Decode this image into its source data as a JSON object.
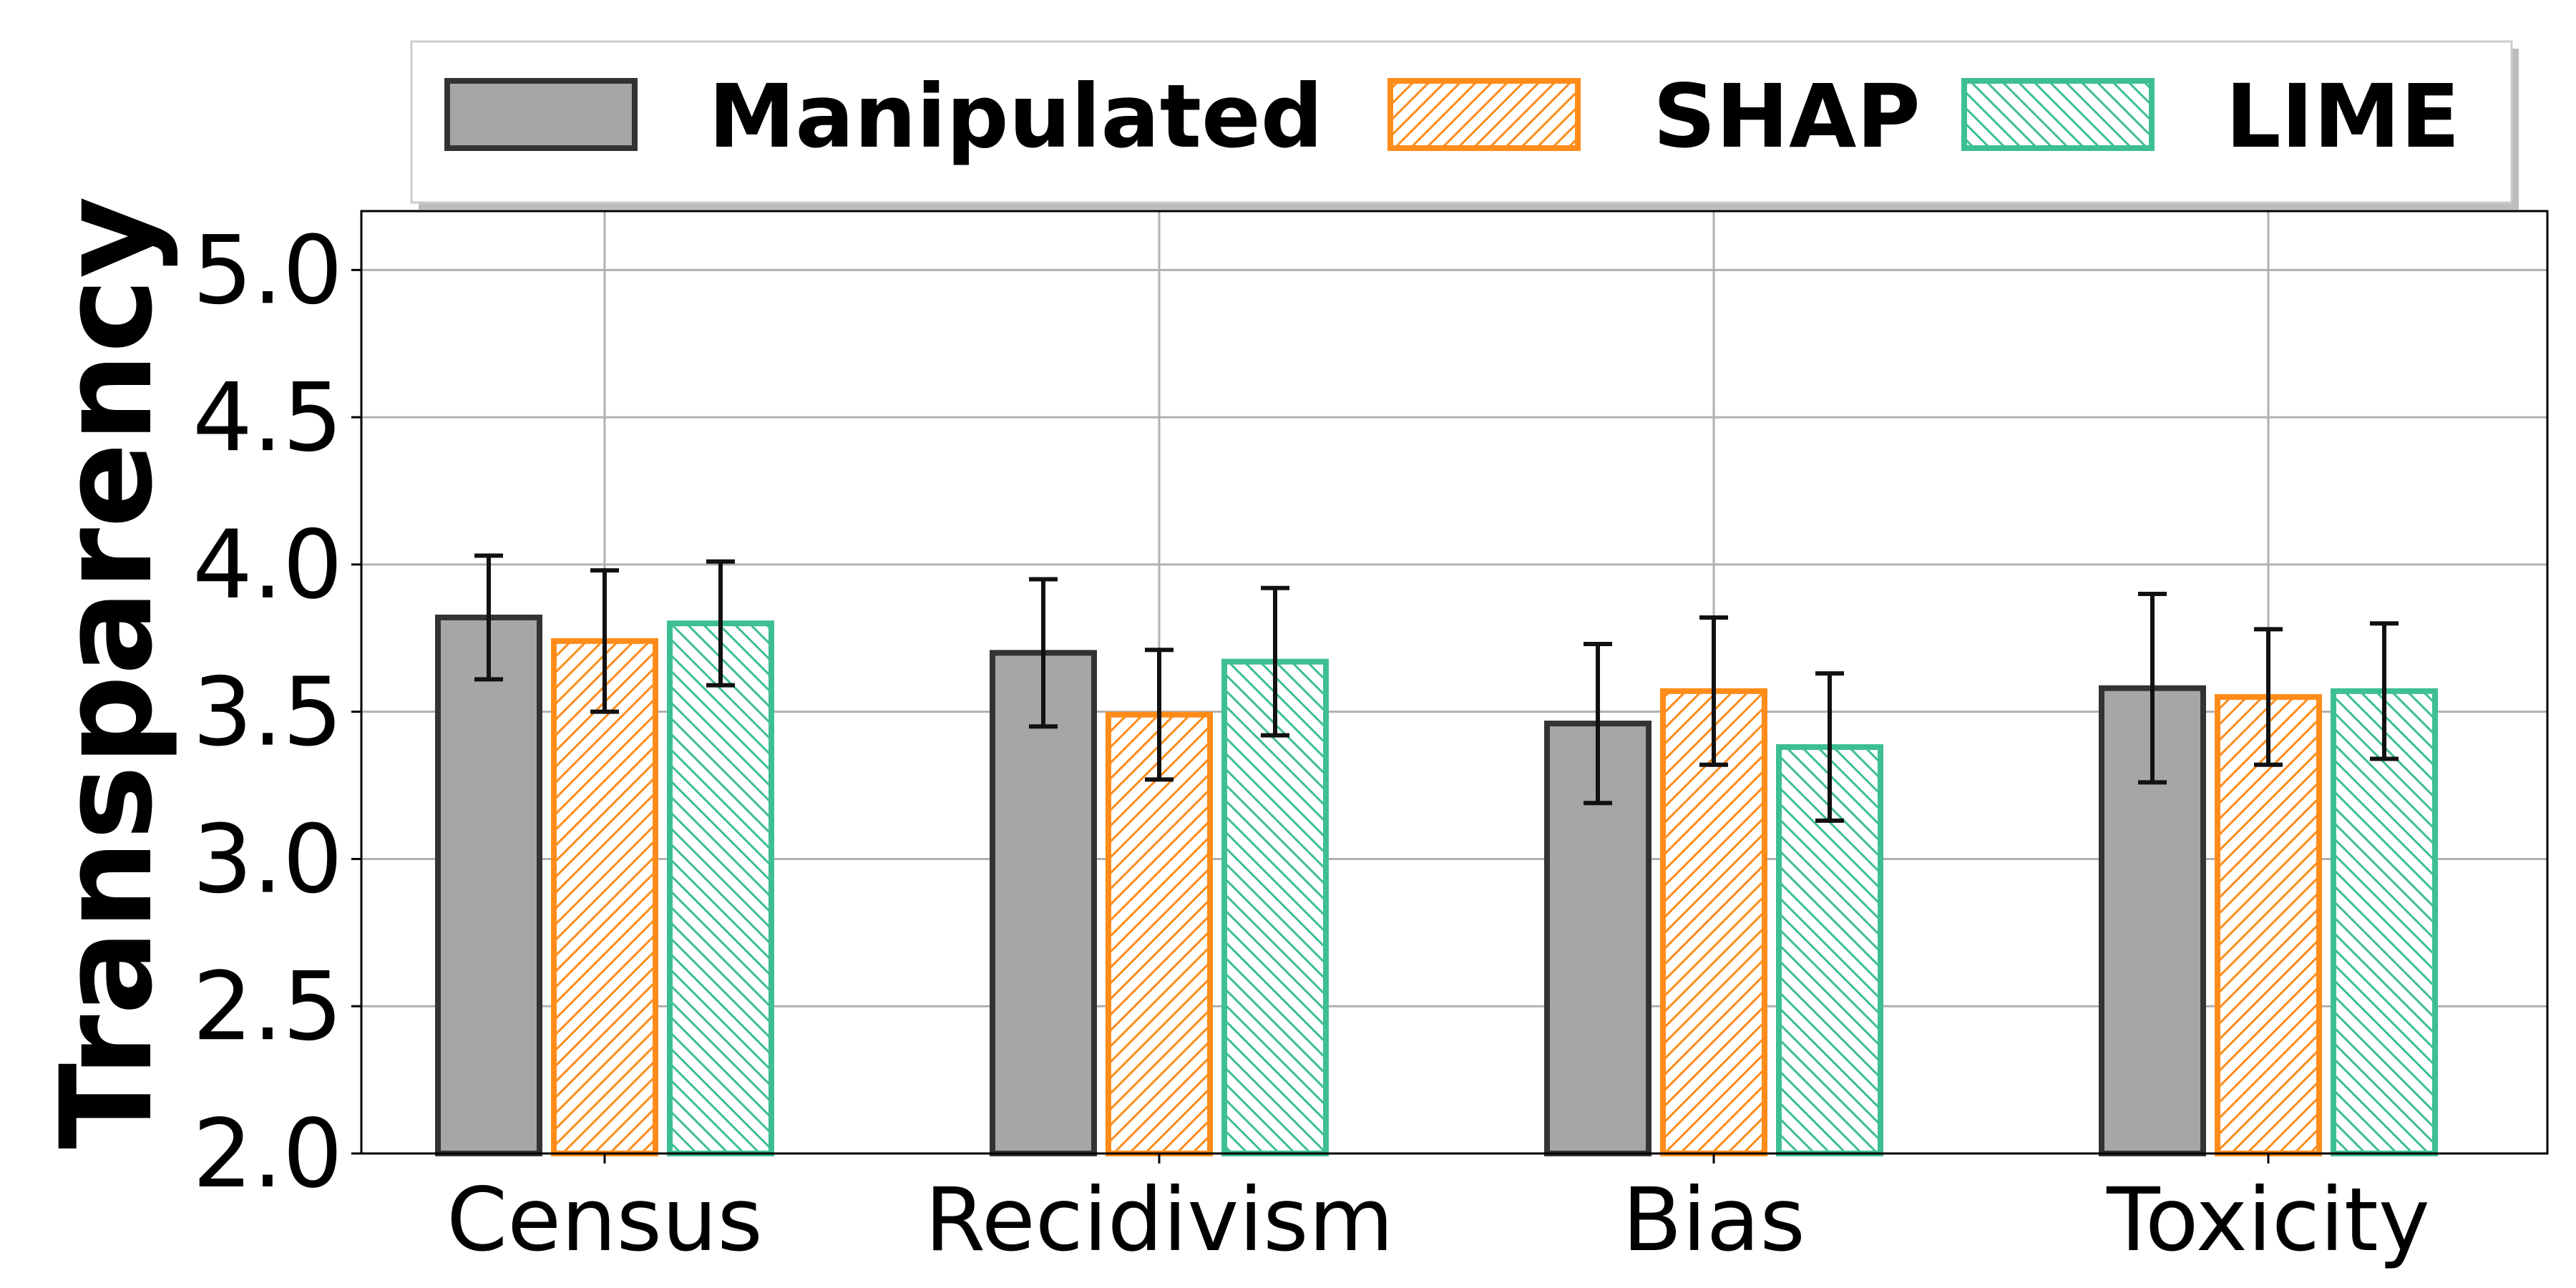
{
  "chart_data": {
    "type": "bar",
    "title": "",
    "xlabel": "",
    "ylabel": "Transparency",
    "ylim": [
      2.0,
      5.2
    ],
    "yticks": [
      "2.0",
      "2.5",
      "3.0",
      "3.5",
      "4.0",
      "4.5",
      "5.0"
    ],
    "grid": true,
    "legend_position": "top",
    "categories": [
      "Census",
      "Recidivism",
      "Bias",
      "Toxicity"
    ],
    "series": [
      {
        "name": "Manipulated",
        "values": [
          3.82,
          3.7,
          3.46,
          3.58
        ],
        "errors": [
          0.21,
          0.25,
          0.27,
          0.32
        ],
        "fill": "#a6a6a6",
        "edge": "#333333",
        "hatch": "none"
      },
      {
        "name": "SHAP",
        "values": [
          3.74,
          3.49,
          3.57,
          3.55
        ],
        "errors": [
          0.24,
          0.22,
          0.25,
          0.23
        ],
        "fill": "#ffffff",
        "edge": "#ff8c1a",
        "hatch": "forward"
      },
      {
        "name": "LIME",
        "values": [
          3.8,
          3.67,
          3.38,
          3.57
        ],
        "errors": [
          0.21,
          0.25,
          0.25,
          0.23
        ],
        "fill": "#ffffff",
        "edge": "#3dbf91",
        "hatch": "back"
      }
    ]
  }
}
